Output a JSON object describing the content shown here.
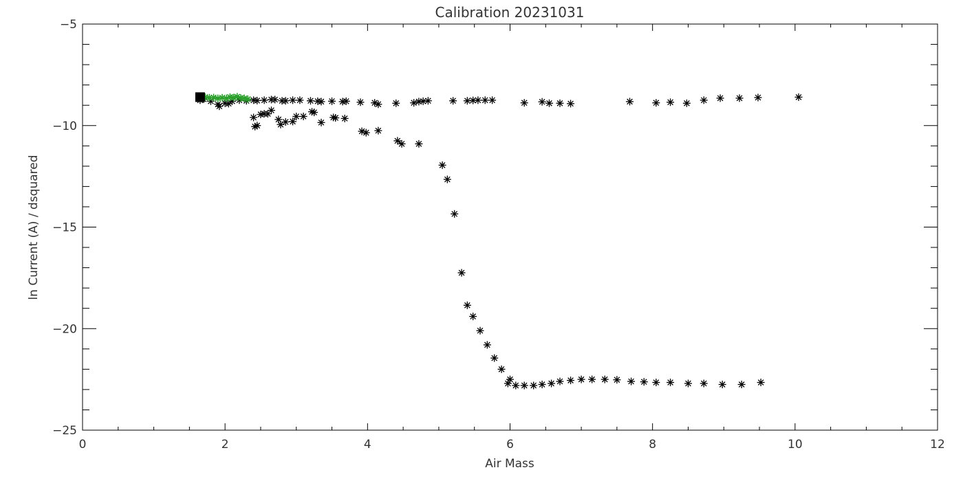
{
  "chart_data": {
    "type": "scatter",
    "title": "Calibration 20231031",
    "xlabel": "Air Mass",
    "ylabel": "ln Current (A) / dsquared",
    "xlim": [
      0,
      12
    ],
    "ylim": [
      -25,
      -5
    ],
    "xticks": [
      0,
      2,
      4,
      6,
      8,
      10,
      12
    ],
    "yticks": [
      -25,
      -20,
      -15,
      -10,
      -5
    ],
    "xtick_labels": [
      "0",
      "2",
      "4",
      "6",
      "8",
      "10",
      "12"
    ],
    "ytick_labels": [
      "−25",
      "−20",
      "−15",
      "−10",
      "−5"
    ],
    "grid": false,
    "series": [
      {
        "marker": "asterisk",
        "color": "#000000",
        "points": [
          [
            1.65,
            -8.75
          ],
          [
            1.7,
            -8.7
          ],
          [
            1.8,
            -8.8
          ],
          [
            1.9,
            -8.95
          ],
          [
            1.92,
            -9.05
          ],
          [
            2.0,
            -8.9
          ],
          [
            2.05,
            -8.92
          ],
          [
            2.1,
            -8.8
          ],
          [
            2.2,
            -8.75
          ],
          [
            2.3,
            -8.78
          ],
          [
            2.4,
            -8.75
          ],
          [
            2.45,
            -8.77
          ],
          [
            2.55,
            -8.75
          ],
          [
            2.65,
            -8.72
          ],
          [
            2.7,
            -8.72
          ],
          [
            2.8,
            -8.78
          ],
          [
            2.85,
            -8.78
          ],
          [
            2.95,
            -8.75
          ],
          [
            3.05,
            -8.75
          ],
          [
            3.2,
            -8.78
          ],
          [
            3.3,
            -8.8
          ],
          [
            3.35,
            -8.82
          ],
          [
            3.5,
            -8.8
          ],
          [
            3.65,
            -8.82
          ],
          [
            3.7,
            -8.8
          ],
          [
            3.9,
            -8.85
          ],
          [
            4.1,
            -8.88
          ],
          [
            4.15,
            -8.95
          ],
          [
            4.4,
            -8.9
          ],
          [
            4.65,
            -8.88
          ],
          [
            4.72,
            -8.82
          ],
          [
            4.78,
            -8.8
          ],
          [
            4.85,
            -8.78
          ],
          [
            5.2,
            -8.78
          ],
          [
            5.4,
            -8.78
          ],
          [
            5.48,
            -8.76
          ],
          [
            5.55,
            -8.75
          ],
          [
            5.65,
            -8.75
          ],
          [
            5.75,
            -8.75
          ],
          [
            6.2,
            -8.88
          ],
          [
            6.45,
            -8.83
          ],
          [
            6.55,
            -8.9
          ],
          [
            6.7,
            -8.9
          ],
          [
            6.85,
            -8.92
          ],
          [
            7.68,
            -8.82
          ],
          [
            8.05,
            -8.88
          ],
          [
            8.25,
            -8.85
          ],
          [
            8.48,
            -8.9
          ],
          [
            8.72,
            -8.75
          ],
          [
            8.95,
            -8.65
          ],
          [
            9.22,
            -8.65
          ],
          [
            9.48,
            -8.62
          ],
          [
            10.05,
            -8.6
          ],
          [
            2.4,
            -9.6
          ],
          [
            2.42,
            -10.05
          ],
          [
            2.45,
            -10.0
          ],
          [
            2.5,
            -9.45
          ],
          [
            2.55,
            -9.42
          ],
          [
            2.6,
            -9.42
          ],
          [
            2.65,
            -9.25
          ],
          [
            2.75,
            -9.7
          ],
          [
            2.78,
            -9.95
          ],
          [
            2.85,
            -9.82
          ],
          [
            2.95,
            -9.8
          ],
          [
            3.0,
            -9.55
          ],
          [
            3.1,
            -9.55
          ],
          [
            3.22,
            -9.32
          ],
          [
            3.25,
            -9.35
          ],
          [
            3.35,
            -9.85
          ],
          [
            3.52,
            -9.6
          ],
          [
            3.55,
            -9.62
          ],
          [
            3.68,
            -9.65
          ],
          [
            3.92,
            -10.28
          ],
          [
            3.98,
            -10.35
          ],
          [
            4.15,
            -10.25
          ],
          [
            4.42,
            -10.75
          ],
          [
            4.48,
            -10.9
          ],
          [
            4.72,
            -10.9
          ],
          [
            5.05,
            -11.95
          ],
          [
            5.12,
            -12.65
          ],
          [
            5.22,
            -14.35
          ],
          [
            5.32,
            -17.25
          ],
          [
            5.4,
            -18.85
          ],
          [
            5.48,
            -19.4
          ],
          [
            5.58,
            -20.1
          ],
          [
            5.68,
            -20.8
          ],
          [
            5.78,
            -21.45
          ],
          [
            5.88,
            -22.0
          ],
          [
            5.97,
            -22.7
          ],
          [
            6.0,
            -22.5
          ],
          [
            6.08,
            -22.8
          ],
          [
            6.2,
            -22.8
          ],
          [
            6.33,
            -22.8
          ],
          [
            6.45,
            -22.75
          ],
          [
            6.58,
            -22.7
          ],
          [
            6.7,
            -22.6
          ],
          [
            6.85,
            -22.55
          ],
          [
            7.0,
            -22.5
          ],
          [
            7.15,
            -22.5
          ],
          [
            7.33,
            -22.5
          ],
          [
            7.5,
            -22.52
          ],
          [
            7.7,
            -22.6
          ],
          [
            7.88,
            -22.62
          ],
          [
            8.05,
            -22.65
          ],
          [
            8.25,
            -22.65
          ],
          [
            8.5,
            -22.7
          ],
          [
            8.72,
            -22.7
          ],
          [
            8.98,
            -22.75
          ],
          [
            9.25,
            -22.75
          ],
          [
            9.52,
            -22.65
          ]
        ]
      },
      {
        "marker": "asterisk",
        "color": "#2ca02c",
        "points": [
          [
            1.72,
            -8.6
          ],
          [
            1.78,
            -8.63
          ],
          [
            1.84,
            -8.62
          ],
          [
            1.9,
            -8.66
          ],
          [
            1.96,
            -8.63
          ],
          [
            2.02,
            -8.66
          ],
          [
            2.07,
            -8.6
          ],
          [
            2.12,
            -8.62
          ],
          [
            2.17,
            -8.58
          ],
          [
            2.22,
            -8.64
          ],
          [
            2.27,
            -8.66
          ],
          [
            2.32,
            -8.7
          ]
        ]
      },
      {
        "marker": "square",
        "color": "#000000",
        "points": [
          [
            1.65,
            -8.6
          ]
        ]
      }
    ]
  }
}
